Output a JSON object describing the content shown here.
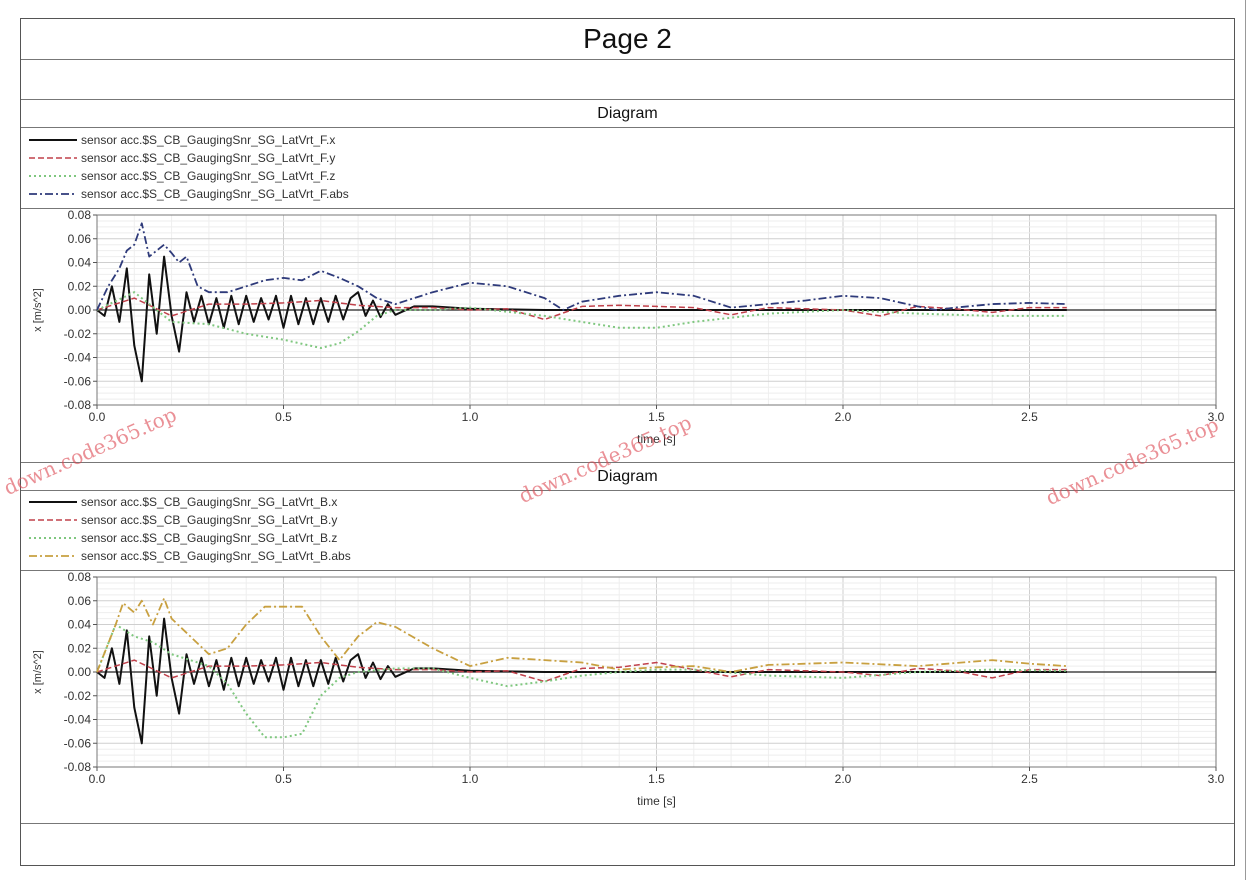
{
  "page": {
    "title": "Page 2"
  },
  "watermarks": [
    "down.code365.top",
    "down.code365.top",
    "down.code365.top"
  ],
  "chart_data": [
    {
      "type": "line",
      "header": "Diagram",
      "xlabel": "time [s]",
      "ylabel": "x [m/s^2]",
      "xlim": [
        0,
        3.0
      ],
      "ylim": [
        -0.08,
        0.08
      ],
      "xticks": [
        "0.0",
        "0.5",
        "1.0",
        "1.5",
        "2.0",
        "2.5",
        "3.0"
      ],
      "yticks": [
        "0.08",
        "0.06",
        "0.04",
        "0.02",
        "0.00",
        "-0.02",
        "-0.04",
        "-0.06",
        "-0.08"
      ],
      "grid": true,
      "series": [
        {
          "name": "sensor acc.$S_CB_GaugingSnr_SG_LatVrt_F.x",
          "color": "#111111",
          "dash": "",
          "width": 2,
          "x": [
            0,
            0.02,
            0.04,
            0.06,
            0.08,
            0.1,
            0.12,
            0.14,
            0.16,
            0.18,
            0.2,
            0.22,
            0.24,
            0.26,
            0.28,
            0.3,
            0.32,
            0.34,
            0.36,
            0.38,
            0.4,
            0.42,
            0.44,
            0.46,
            0.48,
            0.5,
            0.52,
            0.54,
            0.56,
            0.58,
            0.6,
            0.62,
            0.64,
            0.66,
            0.68,
            0.7,
            0.72,
            0.74,
            0.76,
            0.78,
            0.8,
            0.85,
            0.9,
            1.0,
            1.2,
            1.5,
            2.0,
            2.5,
            2.6
          ],
          "y": [
            0,
            -0.005,
            0.02,
            -0.01,
            0.035,
            -0.03,
            -0.06,
            0.03,
            -0.02,
            0.045,
            -0.005,
            -0.035,
            0.015,
            -0.01,
            0.012,
            -0.012,
            0.01,
            -0.015,
            0.012,
            -0.012,
            0.012,
            -0.01,
            0.01,
            -0.008,
            0.012,
            -0.015,
            0.012,
            -0.012,
            0.01,
            -0.012,
            0.01,
            -0.01,
            0.012,
            -0.008,
            0.01,
            0.015,
            -0.005,
            0.008,
            -0.006,
            0.005,
            -0.004,
            0.003,
            0.003,
            0.001,
            0.0,
            0.0,
            0.0,
            0.0,
            0.0
          ]
        },
        {
          "name": "sensor acc.$S_CB_GaugingSnr_SG_LatVrt_F.y",
          "color": "#c0404a",
          "dash": "6 3",
          "width": 1.5,
          "x": [
            0,
            0.1,
            0.2,
            0.3,
            0.4,
            0.5,
            0.6,
            0.7,
            0.8,
            0.9,
            1.0,
            1.1,
            1.2,
            1.3,
            1.4,
            1.5,
            1.6,
            1.7,
            1.8,
            1.9,
            2.0,
            2.1,
            2.2,
            2.3,
            2.4,
            2.5,
            2.6
          ],
          "y": [
            0,
            0.01,
            -0.005,
            0.005,
            0.005,
            0.006,
            0.008,
            0.004,
            0.002,
            0.002,
            0.0,
            0.001,
            -0.008,
            0.003,
            0.004,
            0.003,
            0.002,
            -0.004,
            0.002,
            0.001,
            0.0,
            -0.005,
            0.003,
            0.001,
            -0.002,
            0.002,
            0.002
          ]
        },
        {
          "name": "sensor acc.$S_CB_GaugingSnr_SG_LatVrt_F.z",
          "color": "#7fc77f",
          "dash": "2 3",
          "width": 2,
          "x": [
            0,
            0.1,
            0.2,
            0.3,
            0.4,
            0.5,
            0.6,
            0.65,
            0.7,
            0.75,
            0.8,
            0.9,
            1.0,
            1.2,
            1.3,
            1.4,
            1.5,
            1.6,
            1.8,
            2.0,
            2.2,
            2.4,
            2.6
          ],
          "y": [
            0,
            0.015,
            -0.01,
            -0.012,
            -0.02,
            -0.025,
            -0.032,
            -0.028,
            -0.018,
            -0.005,
            0.0,
            0.0,
            0.002,
            -0.005,
            -0.01,
            -0.015,
            -0.015,
            -0.01,
            -0.003,
            0.0,
            -0.003,
            -0.005,
            -0.005
          ]
        },
        {
          "name": "sensor acc.$S_CB_GaugingSnr_SG_LatVrt_F.abs",
          "color": "#2e3a7a",
          "dash": "8 3 2 3",
          "width": 1.8,
          "x": [
            0,
            0.03,
            0.06,
            0.08,
            0.1,
            0.12,
            0.14,
            0.16,
            0.18,
            0.2,
            0.22,
            0.24,
            0.27,
            0.3,
            0.35,
            0.4,
            0.45,
            0.5,
            0.55,
            0.6,
            0.65,
            0.7,
            0.75,
            0.8,
            0.9,
            1.0,
            1.1,
            1.2,
            1.25,
            1.3,
            1.4,
            1.5,
            1.6,
            1.7,
            1.8,
            1.9,
            2.0,
            2.1,
            2.2,
            2.25,
            2.3,
            2.4,
            2.5,
            2.6
          ],
          "y": [
            0,
            0.02,
            0.035,
            0.05,
            0.055,
            0.073,
            0.045,
            0.05,
            0.055,
            0.048,
            0.04,
            0.045,
            0.02,
            0.015,
            0.015,
            0.02,
            0.025,
            0.027,
            0.025,
            0.033,
            0.027,
            0.02,
            0.01,
            0.005,
            0.015,
            0.023,
            0.02,
            0.01,
            0.0,
            0.007,
            0.012,
            0.015,
            0.012,
            0.002,
            0.005,
            0.008,
            0.012,
            0.01,
            0.003,
            0.0,
            0.002,
            0.005,
            0.006,
            0.005
          ]
        }
      ]
    },
    {
      "type": "line",
      "header": "Diagram",
      "xlabel": "time [s]",
      "ylabel": "x [m/s^2]",
      "xlim": [
        0,
        3.0
      ],
      "ylim": [
        -0.08,
        0.08
      ],
      "xticks": [
        "0.0",
        "0.5",
        "1.0",
        "1.5",
        "2.0",
        "2.5",
        "3.0"
      ],
      "yticks": [
        "0.08",
        "0.06",
        "0.04",
        "0.02",
        "0.00",
        "-0.02",
        "-0.04",
        "-0.06",
        "-0.08"
      ],
      "grid": true,
      "series": [
        {
          "name": "sensor acc.$S_CB_GaugingSnr_SG_LatVrt_B.x",
          "color": "#111111",
          "dash": "",
          "width": 2,
          "x": [
            0,
            0.02,
            0.04,
            0.06,
            0.08,
            0.1,
            0.12,
            0.14,
            0.16,
            0.18,
            0.2,
            0.22,
            0.24,
            0.26,
            0.28,
            0.3,
            0.32,
            0.34,
            0.36,
            0.38,
            0.4,
            0.42,
            0.44,
            0.46,
            0.48,
            0.5,
            0.52,
            0.54,
            0.56,
            0.58,
            0.6,
            0.62,
            0.64,
            0.66,
            0.68,
            0.7,
            0.72,
            0.74,
            0.76,
            0.78,
            0.8,
            0.85,
            0.9,
            1.0,
            1.2,
            1.5,
            2.0,
            2.5,
            2.6
          ],
          "y": [
            0,
            -0.005,
            0.02,
            -0.01,
            0.035,
            -0.03,
            -0.06,
            0.03,
            -0.02,
            0.045,
            -0.005,
            -0.035,
            0.015,
            -0.01,
            0.012,
            -0.012,
            0.01,
            -0.015,
            0.012,
            -0.012,
            0.012,
            -0.01,
            0.01,
            -0.008,
            0.012,
            -0.015,
            0.012,
            -0.012,
            0.01,
            -0.012,
            0.01,
            -0.01,
            0.012,
            -0.008,
            0.01,
            0.015,
            -0.005,
            0.008,
            -0.006,
            0.005,
            -0.004,
            0.003,
            0.003,
            0.001,
            0.0,
            0.0,
            0.0,
            0.0,
            0.0
          ]
        },
        {
          "name": "sensor acc.$S_CB_GaugingSnr_SG_LatVrt_B.y",
          "color": "#c0404a",
          "dash": "6 3",
          "width": 1.5,
          "x": [
            0,
            0.1,
            0.2,
            0.3,
            0.4,
            0.5,
            0.6,
            0.7,
            0.8,
            0.9,
            1.0,
            1.1,
            1.2,
            1.3,
            1.4,
            1.5,
            1.6,
            1.7,
            1.8,
            1.9,
            2.0,
            2.1,
            2.2,
            2.3,
            2.4,
            2.5,
            2.6
          ],
          "y": [
            0,
            0.01,
            -0.005,
            0.005,
            0.005,
            0.006,
            0.008,
            0.004,
            0.002,
            0.002,
            0.0,
            0.001,
            -0.008,
            0.003,
            0.004,
            0.008,
            0.002,
            -0.004,
            0.002,
            0.001,
            0.0,
            -0.003,
            0.003,
            0.001,
            -0.005,
            0.002,
            0.002
          ]
        },
        {
          "name": "sensor acc.$S_CB_GaugingSnr_SG_LatVrt_B.z",
          "color": "#7fc77f",
          "dash": "2 3",
          "width": 2,
          "x": [
            0,
            0.05,
            0.1,
            0.15,
            0.2,
            0.25,
            0.3,
            0.35,
            0.4,
            0.45,
            0.5,
            0.55,
            0.6,
            0.65,
            0.7,
            0.8,
            0.9,
            1.0,
            1.1,
            1.2,
            1.3,
            1.4,
            1.5,
            1.6,
            1.8,
            2.0,
            2.2,
            2.4,
            2.6
          ],
          "y": [
            0,
            0.04,
            0.03,
            0.025,
            0.015,
            0.01,
            0.005,
            -0.01,
            -0.035,
            -0.055,
            -0.055,
            -0.052,
            -0.02,
            -0.005,
            0.0,
            0.003,
            0.003,
            -0.005,
            -0.012,
            -0.008,
            -0.003,
            0.0,
            0.002,
            0.002,
            -0.003,
            -0.005,
            0.0,
            0.002,
            0.001
          ]
        },
        {
          "name": "sensor acc.$S_CB_GaugingSnr_SG_LatVrt_B.abs",
          "color": "#c8a040",
          "dash": "8 3 2 3",
          "width": 1.8,
          "x": [
            0,
            0.05,
            0.07,
            0.1,
            0.12,
            0.15,
            0.18,
            0.2,
            0.25,
            0.3,
            0.35,
            0.4,
            0.45,
            0.5,
            0.55,
            0.6,
            0.65,
            0.7,
            0.75,
            0.8,
            0.9,
            1.0,
            1.1,
            1.2,
            1.3,
            1.4,
            1.5,
            1.6,
            1.7,
            1.8,
            2.0,
            2.2,
            2.4,
            2.5,
            2.6
          ],
          "y": [
            0,
            0.04,
            0.058,
            0.05,
            0.06,
            0.04,
            0.062,
            0.045,
            0.03,
            0.015,
            0.02,
            0.04,
            0.055,
            0.055,
            0.055,
            0.03,
            0.01,
            0.03,
            0.042,
            0.038,
            0.02,
            0.005,
            0.012,
            0.01,
            0.008,
            0.002,
            0.004,
            0.005,
            0.0,
            0.006,
            0.008,
            0.005,
            0.01,
            0.007,
            0.005
          ]
        }
      ]
    }
  ]
}
